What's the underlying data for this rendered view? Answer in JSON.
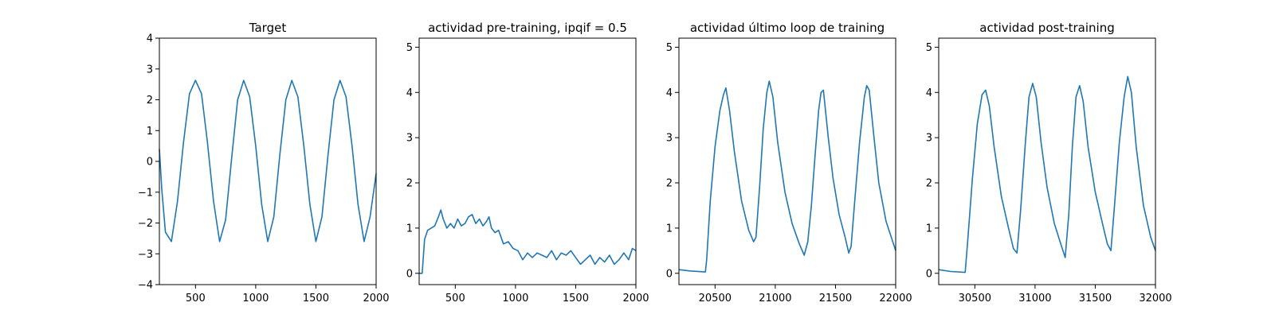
{
  "chart_data": [
    {
      "type": "line",
      "title": "Target",
      "xlim": [
        200,
        2000
      ],
      "ylim": [
        -4,
        4
      ],
      "xticks": [
        500,
        1000,
        1500,
        2000
      ],
      "yticks": [
        -4,
        -3,
        -2,
        -1,
        0,
        1,
        2,
        3,
        4
      ],
      "xtick_labels": [
        "500",
        "1000",
        "1500",
        "2000"
      ],
      "ytick_labels": [
        "−4",
        "−3",
        "−2",
        "−1",
        "0",
        "1",
        "2",
        "3",
        "4"
      ],
      "grid": false,
      "color": "#1f77b4",
      "series": [
        {
          "x": [
            200,
            220,
            250,
            300,
            350,
            400,
            450,
            500,
            550,
            600,
            650,
            700,
            750,
            800,
            850,
            900,
            950,
            1000,
            1050,
            1100,
            1150,
            1200,
            1250,
            1300,
            1350,
            1400,
            1450,
            1500,
            1550,
            1600,
            1650,
            1700,
            1750,
            1800,
            1850,
            1900,
            1950,
            2000
          ],
          "y": [
            0.4,
            -0.9,
            -2.3,
            -2.6,
            -1.3,
            0.6,
            2.2,
            2.63,
            2.2,
            0.6,
            -1.3,
            -2.6,
            -1.9,
            0.1,
            2.0,
            2.63,
            2.1,
            0.5,
            -1.4,
            -2.6,
            -1.8,
            0.2,
            2.0,
            2.63,
            2.1,
            0.5,
            -1.4,
            -2.6,
            -1.8,
            0.2,
            2.0,
            2.63,
            2.1,
            0.5,
            -1.4,
            -2.6,
            -1.8,
            -0.4
          ]
        }
      ]
    },
    {
      "type": "line",
      "title": "actividad pre-training, ipqif = 0.5",
      "xlim": [
        200,
        2000
      ],
      "ylim": [
        -0.25,
        5.2
      ],
      "xticks": [
        500,
        1000,
        1500,
        2000
      ],
      "yticks": [
        0,
        1,
        2,
        3,
        4,
        5
      ],
      "xtick_labels": [
        "500",
        "1000",
        "1500",
        "2000"
      ],
      "ytick_labels": [
        "0",
        "1",
        "2",
        "3",
        "4",
        "5"
      ],
      "grid": false,
      "color": "#1f77b4",
      "series": [
        {
          "x": [
            200,
            225,
            245,
            270,
            300,
            330,
            360,
            380,
            400,
            430,
            460,
            490,
            520,
            550,
            580,
            610,
            640,
            670,
            700,
            730,
            760,
            780,
            800,
            830,
            860,
            900,
            940,
            980,
            1020,
            1060,
            1100,
            1140,
            1180,
            1220,
            1260,
            1300,
            1340,
            1380,
            1420,
            1460,
            1500,
            1540,
            1580,
            1620,
            1660,
            1700,
            1740,
            1780,
            1820,
            1860,
            1900,
            1940,
            1970,
            2000
          ],
          "y": [
            0.0,
            0.0,
            0.75,
            0.95,
            1.0,
            1.05,
            1.25,
            1.4,
            1.2,
            1.0,
            1.1,
            1.0,
            1.2,
            1.05,
            1.1,
            1.25,
            1.3,
            1.1,
            1.2,
            1.05,
            1.15,
            1.25,
            1.0,
            0.9,
            0.95,
            0.65,
            0.7,
            0.55,
            0.5,
            0.3,
            0.45,
            0.35,
            0.45,
            0.4,
            0.35,
            0.5,
            0.3,
            0.45,
            0.4,
            0.5,
            0.35,
            0.2,
            0.3,
            0.4,
            0.2,
            0.35,
            0.25,
            0.4,
            0.2,
            0.3,
            0.45,
            0.3,
            0.55,
            0.5
          ]
        }
      ]
    },
    {
      "type": "line",
      "title": "actividad último loop de training",
      "xlim": [
        20200,
        22000
      ],
      "ylim": [
        -0.25,
        5.2
      ],
      "xticks": [
        20500,
        21000,
        21500,
        22000
      ],
      "yticks": [
        0,
        1,
        2,
        3,
        4,
        5
      ],
      "xtick_labels": [
        "20500",
        "21000",
        "21500",
        "22000"
      ],
      "ytick_labels": [
        "0",
        "1",
        "2",
        "3",
        "4",
        "5"
      ],
      "grid": false,
      "color": "#1f77b4",
      "series": [
        {
          "x": [
            20200,
            20300,
            20420,
            20430,
            20460,
            20500,
            20540,
            20570,
            20590,
            20620,
            20660,
            20720,
            20780,
            20820,
            20840,
            20870,
            20900,
            20930,
            20950,
            20980,
            21020,
            21080,
            21140,
            21200,
            21240,
            21270,
            21300,
            21330,
            21360,
            21380,
            21400,
            21440,
            21480,
            21530,
            21580,
            21610,
            21630,
            21660,
            21700,
            21740,
            21760,
            21780,
            21820,
            21860,
            21920,
            22000
          ],
          "y": [
            0.08,
            0.05,
            0.03,
            0.3,
            1.6,
            2.8,
            3.6,
            3.95,
            4.1,
            3.6,
            2.7,
            1.6,
            0.95,
            0.7,
            0.8,
            1.9,
            3.2,
            4.0,
            4.25,
            3.9,
            2.9,
            1.8,
            1.1,
            0.65,
            0.4,
            0.7,
            1.5,
            2.6,
            3.6,
            4.0,
            4.05,
            3.0,
            2.1,
            1.3,
            0.8,
            0.45,
            0.6,
            1.6,
            2.9,
            3.9,
            4.15,
            4.05,
            3.0,
            2.0,
            1.15,
            0.5
          ]
        }
      ]
    },
    {
      "type": "line",
      "title": "actividad post-training",
      "xlim": [
        30200,
        32000
      ],
      "ylim": [
        -0.25,
        5.2
      ],
      "xticks": [
        30500,
        31000,
        31500,
        32000
      ],
      "yticks": [
        0,
        1,
        2,
        3,
        4,
        5
      ],
      "xtick_labels": [
        "30500",
        "31000",
        "31500",
        "32000"
      ],
      "ytick_labels": [
        "0",
        "1",
        "2",
        "3",
        "4",
        "5"
      ],
      "grid": false,
      "color": "#1f77b4",
      "series": [
        {
          "x": [
            30200,
            30300,
            30420,
            30440,
            30480,
            30520,
            30560,
            30590,
            30620,
            30660,
            30720,
            30780,
            30820,
            30850,
            30880,
            30920,
            30950,
            30980,
            31010,
            31050,
            31100,
            31160,
            31220,
            31250,
            31280,
            31310,
            31340,
            31370,
            31400,
            31440,
            31500,
            31560,
            31600,
            31630,
            31660,
            31700,
            31740,
            31770,
            31800,
            31840,
            31900,
            31960,
            32000
          ],
          "y": [
            0.08,
            0.04,
            0.02,
            0.7,
            2.1,
            3.3,
            3.95,
            4.05,
            3.7,
            2.8,
            1.7,
            1.0,
            0.55,
            0.45,
            1.4,
            2.9,
            3.9,
            4.2,
            3.9,
            2.9,
            1.9,
            1.1,
            0.6,
            0.35,
            1.3,
            2.8,
            3.9,
            4.15,
            3.8,
            2.8,
            1.8,
            1.1,
            0.65,
            0.5,
            1.5,
            2.9,
            3.9,
            4.35,
            4.0,
            2.8,
            1.5,
            0.8,
            0.5
          ]
        }
      ]
    }
  ]
}
